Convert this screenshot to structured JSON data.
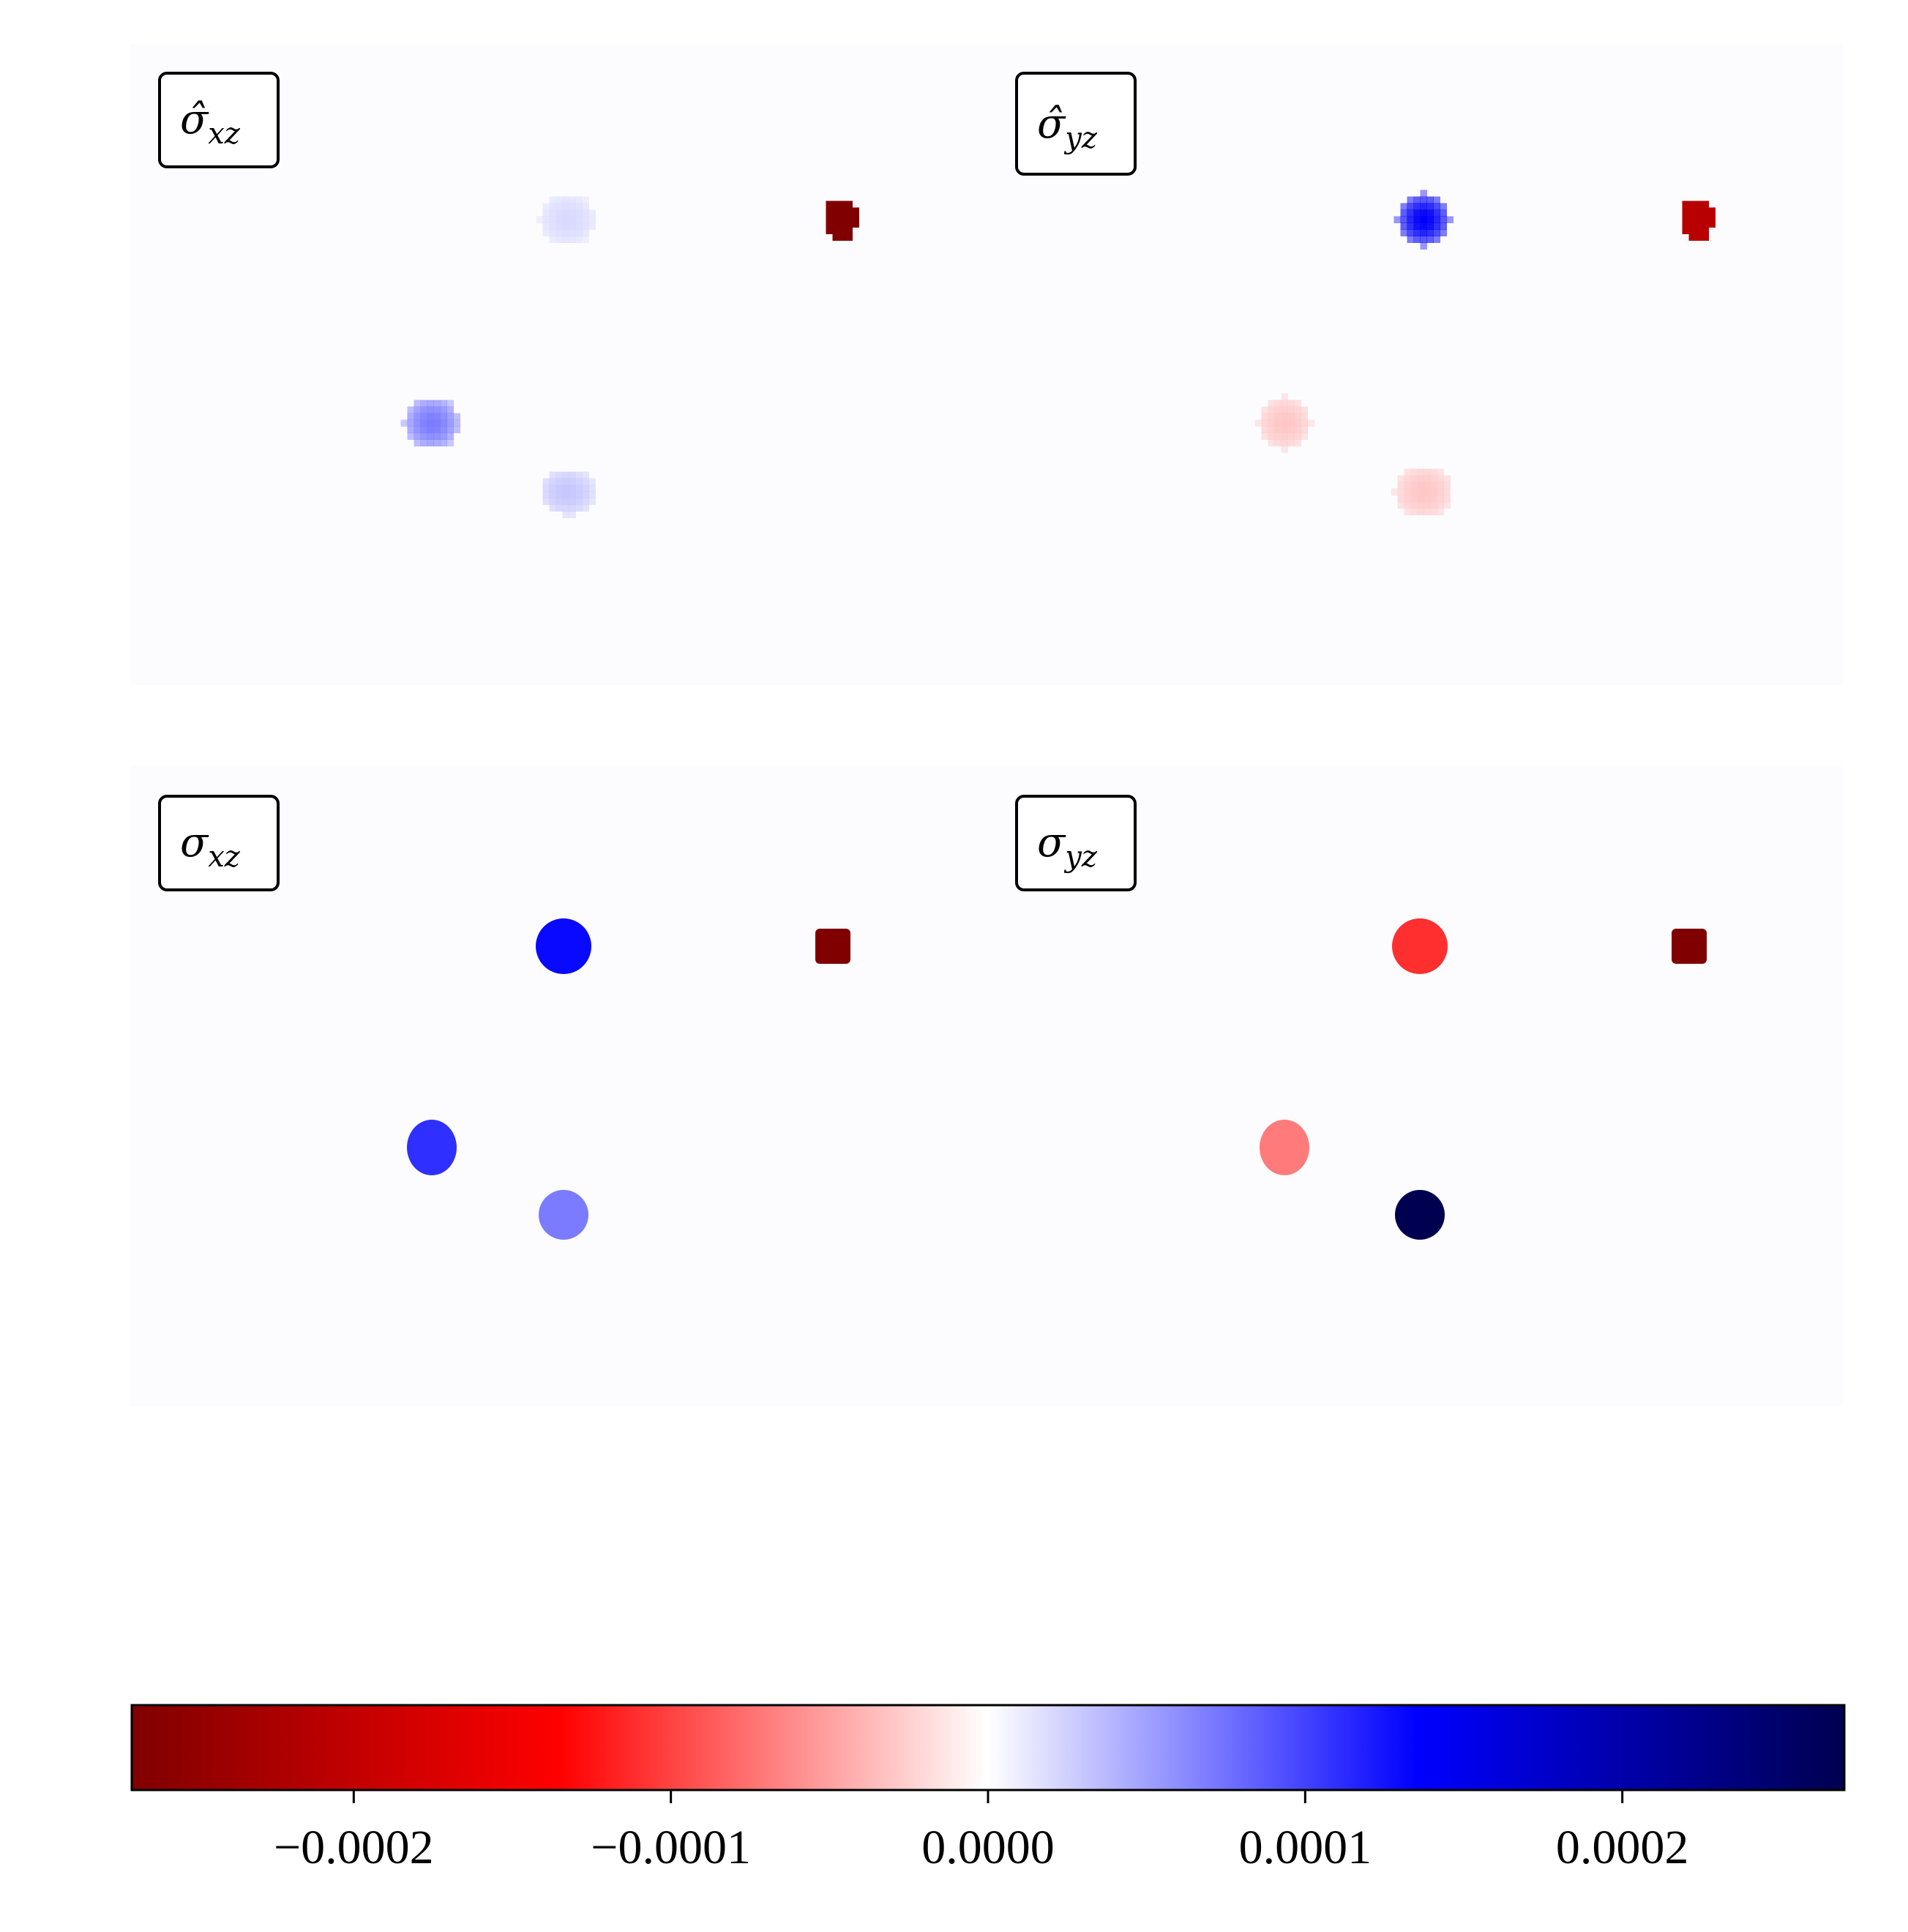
{
  "chart_data": {
    "type": "heatmap",
    "colormap": "seismic (reversed): dark red = negative, white = 0, dark blue = positive",
    "colors": {
      "neg_dark": "#800000",
      "neg": "#ff0000",
      "zero": "#ffffff",
      "pos": "#0000ff",
      "pos_dark": "#000050",
      "background": "#fcfcff"
    },
    "vmin": -0.00027,
    "vmax": 0.00027,
    "panels": [
      {
        "name": "sigma_hat_xz",
        "label_main": "σ̂",
        "label_sub": "xz",
        "style": "blocky",
        "blobs": [
          {
            "x": 0.244,
            "y": 0.276,
            "value": 7e-05,
            "r": 0.026
          },
          {
            "x": 0.397,
            "y": 0.274,
            "value": 2e-05,
            "r": 0.026
          },
          {
            "x": 0.394,
            "y": 0.697,
            "value": 3e-05,
            "r": 0.026
          },
          {
            "x": 0.474,
            "y": 0.696,
            "value": -0.00027,
            "r": 0.016
          },
          {
            "x": 0.397,
            "y": 0.274,
            "value": 3e-05,
            "r": 0.012
          }
        ]
      },
      {
        "name": "sigma_hat_yz",
        "label_main": "σ̂",
        "label_sub": "yz",
        "style": "blocky",
        "blobs": [
          {
            "x": 0.241,
            "y": 0.276,
            "value": -3e-05,
            "r": 0.026
          },
          {
            "x": 0.398,
            "y": 0.274,
            "value": 0.00014,
            "r": 0.026
          },
          {
            "x": 0.398,
            "y": 0.697,
            "value": -3e-05,
            "r": 0.026
          },
          {
            "x": 0.457,
            "y": 0.696,
            "value": -0.00021,
            "r": 0.016
          }
        ]
      },
      {
        "name": "sigma_xz",
        "label_main": "σ",
        "label_sub": "xz",
        "style": "smooth",
        "blobs": [
          {
            "x": 0.245,
            "y": 0.275,
            "value": 0.00011,
            "r": 0.027
          },
          {
            "x": 0.396,
            "y": 0.278,
            "value": 7e-05,
            "r": 0.027
          },
          {
            "x": 0.397,
            "y": 0.699,
            "value": 0.00013,
            "r": 0.026
          },
          {
            "x": 0.472,
            "y": 0.701,
            "value": -0.00027,
            "r": 0.017
          }
        ]
      },
      {
        "name": "sigma_yz",
        "label_main": "σ",
        "label_sub": "yz",
        "style": "smooth",
        "blobs": [
          {
            "x": 0.245,
            "y": 0.275,
            "value": -7e-05,
            "r": 0.027
          },
          {
            "x": 0.396,
            "y": 0.278,
            "value": 0.00027,
            "r": 0.027
          },
          {
            "x": 0.397,
            "y": 0.699,
            "value": -0.00011,
            "r": 0.026
          },
          {
            "x": 0.469,
            "y": 0.701,
            "value": -0.00027,
            "r": 0.017
          }
        ]
      }
    ],
    "colorbar": {
      "orientation": "horizontal",
      "ticks": [
        -0.0002,
        -0.0001,
        0.0,
        0.0001,
        0.0002
      ],
      "tick_labels": [
        "−0.0002",
        "−0.0001",
        "0.0000",
        "0.0001",
        "0.0002"
      ]
    }
  }
}
